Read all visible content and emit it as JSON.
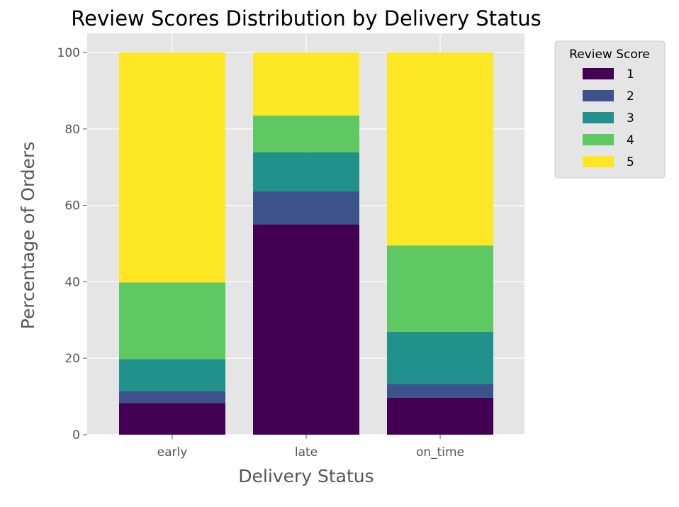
{
  "chart_data": {
    "type": "bar",
    "stacked": true,
    "title": "Review Scores Distribution by Delivery Status",
    "xlabel": "Delivery Status",
    "ylabel": "Percentage of Orders",
    "categories": [
      "early",
      "late",
      "on_time"
    ],
    "ylim": [
      0,
      100
    ],
    "yticks": [
      0,
      20,
      40,
      60,
      80,
      100
    ],
    "grid": true,
    "legend": {
      "title": "Review Score",
      "placement": "outside-upper-right"
    },
    "series": [
      {
        "name": "1",
        "color": "#440154",
        "values": [
          8.3,
          55.0,
          9.7
        ]
      },
      {
        "name": "2",
        "color": "#3b528b",
        "values": [
          3.1,
          8.7,
          3.6
        ]
      },
      {
        "name": "3",
        "color": "#21918c",
        "values": [
          8.4,
          10.2,
          13.6
        ]
      },
      {
        "name": "4",
        "color": "#5ec962",
        "values": [
          20.0,
          9.6,
          22.6
        ]
      },
      {
        "name": "5",
        "color": "#fde725",
        "values": [
          60.2,
          16.5,
          50.5
        ]
      }
    ]
  }
}
